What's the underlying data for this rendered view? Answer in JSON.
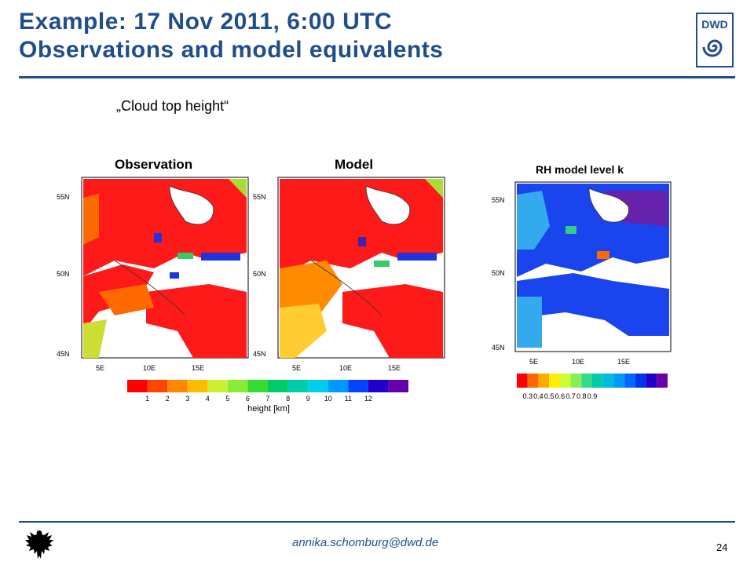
{
  "slide": {
    "title_line1": "Example: 17 Nov 2011, 6:00 UTC",
    "title_line2": "Observations and model equivalents",
    "subtitle": "„Cloud top height“",
    "logo_text": "DWD",
    "footer_email": "annika.schomburg@dwd.de",
    "page_number": "24"
  },
  "panels": [
    {
      "title": "Observation",
      "lat_labels": [
        "55N",
        "50N",
        "45N"
      ],
      "lon_labels": [
        "5E",
        "10E",
        "15E"
      ]
    },
    {
      "title": "Model",
      "lat_labels": [
        "55N",
        "50N",
        "45N"
      ],
      "lon_labels": [
        "5E",
        "10E",
        "15E"
      ]
    },
    {
      "title": "RH model level k",
      "lat_labels": [
        "55N",
        "50N",
        "45N"
      ],
      "lon_labels": [
        "5E",
        "10E",
        "15E"
      ]
    }
  ],
  "colorbars": {
    "height": {
      "tick_labels": [
        "1",
        "2",
        "3",
        "4",
        "5",
        "6",
        "7",
        "8",
        "9",
        "10",
        "11",
        "12"
      ],
      "label": "height [km]",
      "colors": [
        "#ff0000",
        "#ff4400",
        "#ff8800",
        "#ffbb00",
        "#ccee33",
        "#88ee33",
        "#33dd33",
        "#00cc66",
        "#00ccaa",
        "#00ccee",
        "#0099ff",
        "#0044ff",
        "#2200cc",
        "#6600aa"
      ]
    },
    "rh": {
      "tick_labels": [
        "0.3",
        "0.4",
        "0.5",
        "0.6",
        "0.7",
        "0.8",
        "0.9"
      ],
      "colors": [
        "#ff0000",
        "#ff6600",
        "#ffaa00",
        "#ffee00",
        "#ccff33",
        "#88ee55",
        "#33dd88",
        "#00ccaa",
        "#00bbdd",
        "#0099ff",
        "#0066ff",
        "#0033ee",
        "#2200cc",
        "#6600aa"
      ]
    }
  },
  "colors": {
    "accent": "#1f4e8c"
  }
}
